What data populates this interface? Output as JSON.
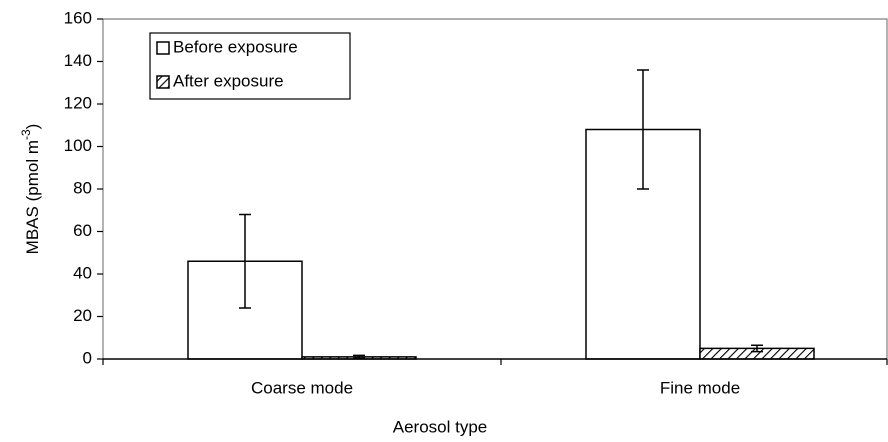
{
  "chart_data": {
    "type": "bar",
    "y_label": {
      "text": "MBAS (pmol m",
      "superscript": "-3",
      "suffix": ")"
    },
    "x_label": "Aerosol type",
    "categories": [
      "Coarse mode",
      "Fine mode"
    ],
    "series": [
      {
        "name": "Before exposure",
        "color": "#ffffff",
        "pattern": "none",
        "values": [
          46,
          108
        ],
        "errors": [
          22,
          28
        ]
      },
      {
        "name": "After exposure",
        "color": "#ffffff",
        "pattern": "hatch",
        "values": [
          1,
          5
        ],
        "errors": [
          0.7,
          1.5
        ]
      }
    ],
    "ylim": [
      0,
      160
    ],
    "yticks": [
      0,
      20,
      40,
      60,
      80,
      100,
      120,
      140,
      160
    ],
    "grid": false,
    "legend": "upper left"
  }
}
